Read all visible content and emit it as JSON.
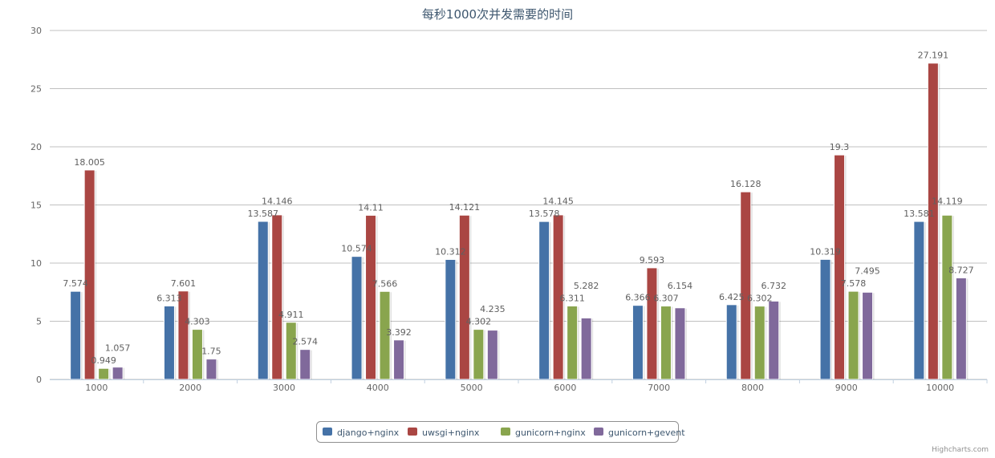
{
  "chart_data": {
    "type": "bar",
    "title": "每秒1000次并发需要的时间",
    "xlabel": "",
    "ylabel": "",
    "ylim": [
      0,
      30
    ],
    "yticks": [
      0,
      5,
      10,
      15,
      20,
      25,
      30
    ],
    "grid": true,
    "legend_position": "bottom-center",
    "categories": [
      "1000",
      "2000",
      "3000",
      "4000",
      "5000",
      "6000",
      "7000",
      "8000",
      "9000",
      "10000"
    ],
    "series": [
      {
        "name": "django+nginx",
        "color": "#4572A7",
        "values": [
          7.574,
          6.313,
          13.587,
          10.574,
          10.312,
          13.578,
          6.366,
          6.425,
          10.319,
          13.581
        ]
      },
      {
        "name": "uwsgi+nginx",
        "color": "#AA4643",
        "values": [
          18.005,
          7.601,
          14.146,
          14.11,
          14.121,
          14.145,
          9.593,
          16.128,
          19.3,
          27.191
        ]
      },
      {
        "name": "gunicorn+nginx",
        "color": "#89A54E",
        "values": [
          0.949,
          4.303,
          4.911,
          7.566,
          4.302,
          6.311,
          6.307,
          6.302,
          7.578,
          14.119
        ]
      },
      {
        "name": "gunicorn+gevent",
        "color": "#80699B",
        "values": [
          1.057,
          1.75,
          2.574,
          3.392,
          4.235,
          5.282,
          6.154,
          6.732,
          7.495,
          8.727
        ]
      }
    ],
    "credits": "Highcharts.com"
  }
}
